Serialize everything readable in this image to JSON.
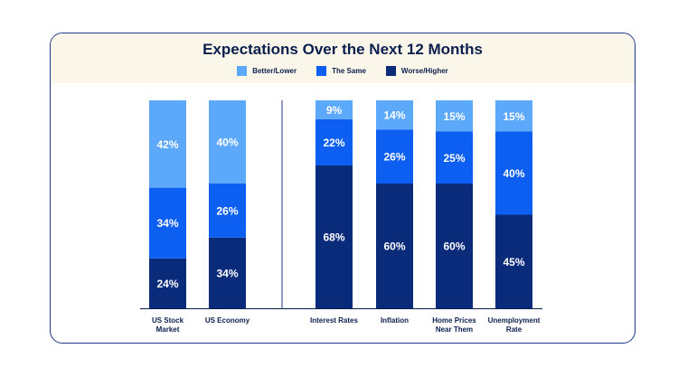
{
  "chart_data": {
    "type": "bar",
    "stacked": true,
    "title": "Expectations Over the Next 12 Months",
    "categories": [
      "US Stock Market",
      "US Economy",
      "Interest Rates",
      "Inflation",
      "Home Prices Near Them",
      "Unemployment Rate"
    ],
    "category_lines": [
      [
        "US Stock",
        "Market"
      ],
      [
        "US Economy"
      ],
      [
        "Interest Rates"
      ],
      [
        "Inflation"
      ],
      [
        "Home Prices",
        "Near Them"
      ],
      [
        "Unemployment",
        "Rate"
      ]
    ],
    "series": [
      {
        "name": "Better/Lower",
        "color": "#5ca8fb",
        "values": [
          42,
          40,
          9,
          14,
          15,
          15
        ],
        "labels": [
          "42%",
          "40%",
          "9%",
          "14%",
          "15%",
          "15%"
        ]
      },
      {
        "name": "The Same",
        "color": "#0c5ff0",
        "values": [
          34,
          26,
          22,
          26,
          25,
          40
        ],
        "labels": [
          "34%",
          "26%",
          "22%",
          "26%",
          "25%",
          "40%"
        ]
      },
      {
        "name": "Worse/Higher",
        "color": "#0a2a7a",
        "values": [
          24,
          34,
          68,
          60,
          60,
          45
        ],
        "labels": [
          "24%",
          "34%",
          "68%",
          "60%",
          "60%",
          "45%"
        ]
      }
    ],
    "legend_position": "top-center",
    "grid": false
  }
}
